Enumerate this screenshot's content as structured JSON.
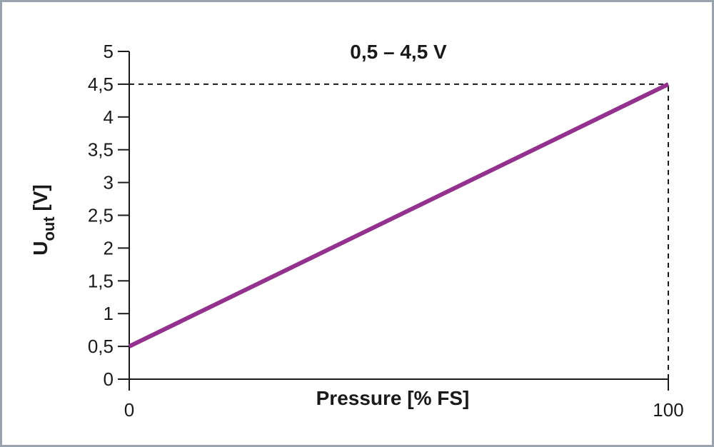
{
  "chart_data": {
    "type": "line",
    "title": "0,5 – 4,5 V",
    "xlabel": "Pressure [% FS]",
    "ylabel_main": "U",
    "ylabel_sub": "out",
    "ylabel_unit": " [V]",
    "xlim": [
      0,
      100
    ],
    "ylim": [
      0,
      5
    ],
    "x_ticks": [
      0,
      100
    ],
    "x_tick_labels": [
      "0",
      "100"
    ],
    "y_ticks": [
      0,
      0.5,
      1,
      1.5,
      2,
      2.5,
      3,
      3.5,
      4,
      4.5,
      5
    ],
    "y_tick_labels": [
      "0",
      "0,5",
      "1",
      "1,5",
      "2",
      "2,5",
      "3",
      "3,5",
      "4",
      "4,5",
      "5"
    ],
    "grid": false,
    "series": [
      {
        "x": [
          0,
          100
        ],
        "y": [
          0.5,
          4.5
        ],
        "color": "#93318f"
      }
    ],
    "reference_lines": [
      {
        "orientation": "horizontal",
        "value": 4.5,
        "from": 0,
        "to": 100,
        "style": "dashed"
      },
      {
        "orientation": "vertical",
        "value": 100,
        "from": 0,
        "to": 4.5,
        "style": "dashed"
      }
    ]
  }
}
